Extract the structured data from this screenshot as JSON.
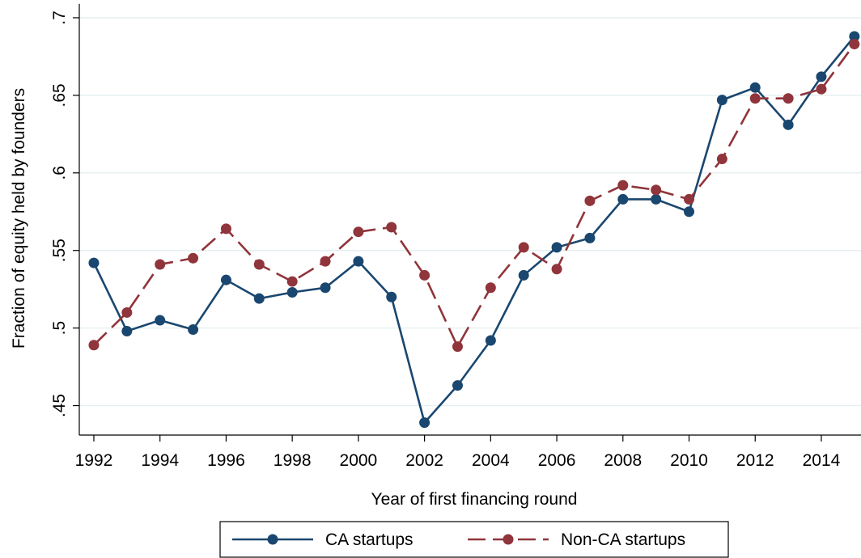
{
  "chart_data": {
    "type": "line",
    "x_label": "Year of first financing round",
    "y_label": "Fraction of equity held by founders",
    "x": [
      1992,
      1993,
      1994,
      1995,
      1996,
      1997,
      1998,
      1999,
      2000,
      2001,
      2002,
      2003,
      2004,
      2005,
      2006,
      2007,
      2008,
      2009,
      2010,
      2011,
      2012,
      2013,
      2014,
      2015
    ],
    "series": [
      {
        "name": "CA startups",
        "color": "#1a476f",
        "line_style": "solid",
        "values": [
          0.542,
          0.498,
          0.505,
          0.499,
          0.531,
          0.519,
          0.523,
          0.526,
          0.543,
          0.52,
          0.439,
          0.463,
          0.492,
          0.534,
          0.552,
          0.558,
          0.583,
          0.583,
          0.575,
          0.647,
          0.655,
          0.631,
          0.662,
          0.688
        ]
      },
      {
        "name": "Non-CA startups",
        "color": "#90353b",
        "line_style": "dashed",
        "values": [
          0.489,
          0.51,
          0.541,
          0.545,
          0.564,
          0.541,
          0.53,
          0.543,
          0.562,
          0.565,
          0.534,
          0.488,
          0.526,
          0.552,
          0.538,
          0.582,
          0.592,
          0.589,
          0.583,
          0.609,
          0.648,
          0.648,
          0.654,
          0.683
        ]
      }
    ],
    "xlim": [
      1991.56,
      2015.2
    ],
    "xticks": [
      1992,
      1994,
      1996,
      1998,
      2000,
      2002,
      2004,
      2006,
      2008,
      2010,
      2012,
      2014
    ],
    "ylim": [
      0.431,
      0.709
    ],
    "yticks": [
      {
        "value": 0.45,
        "label": ".45"
      },
      {
        "value": 0.5,
        "label": ".5"
      },
      {
        "value": 0.55,
        "label": ".55"
      },
      {
        "value": 0.6,
        "label": ".6"
      },
      {
        "value": 0.65,
        "label": ".65"
      },
      {
        "value": 0.7,
        "label": ".7"
      }
    ],
    "grid": true,
    "legend_position": "bottom"
  }
}
